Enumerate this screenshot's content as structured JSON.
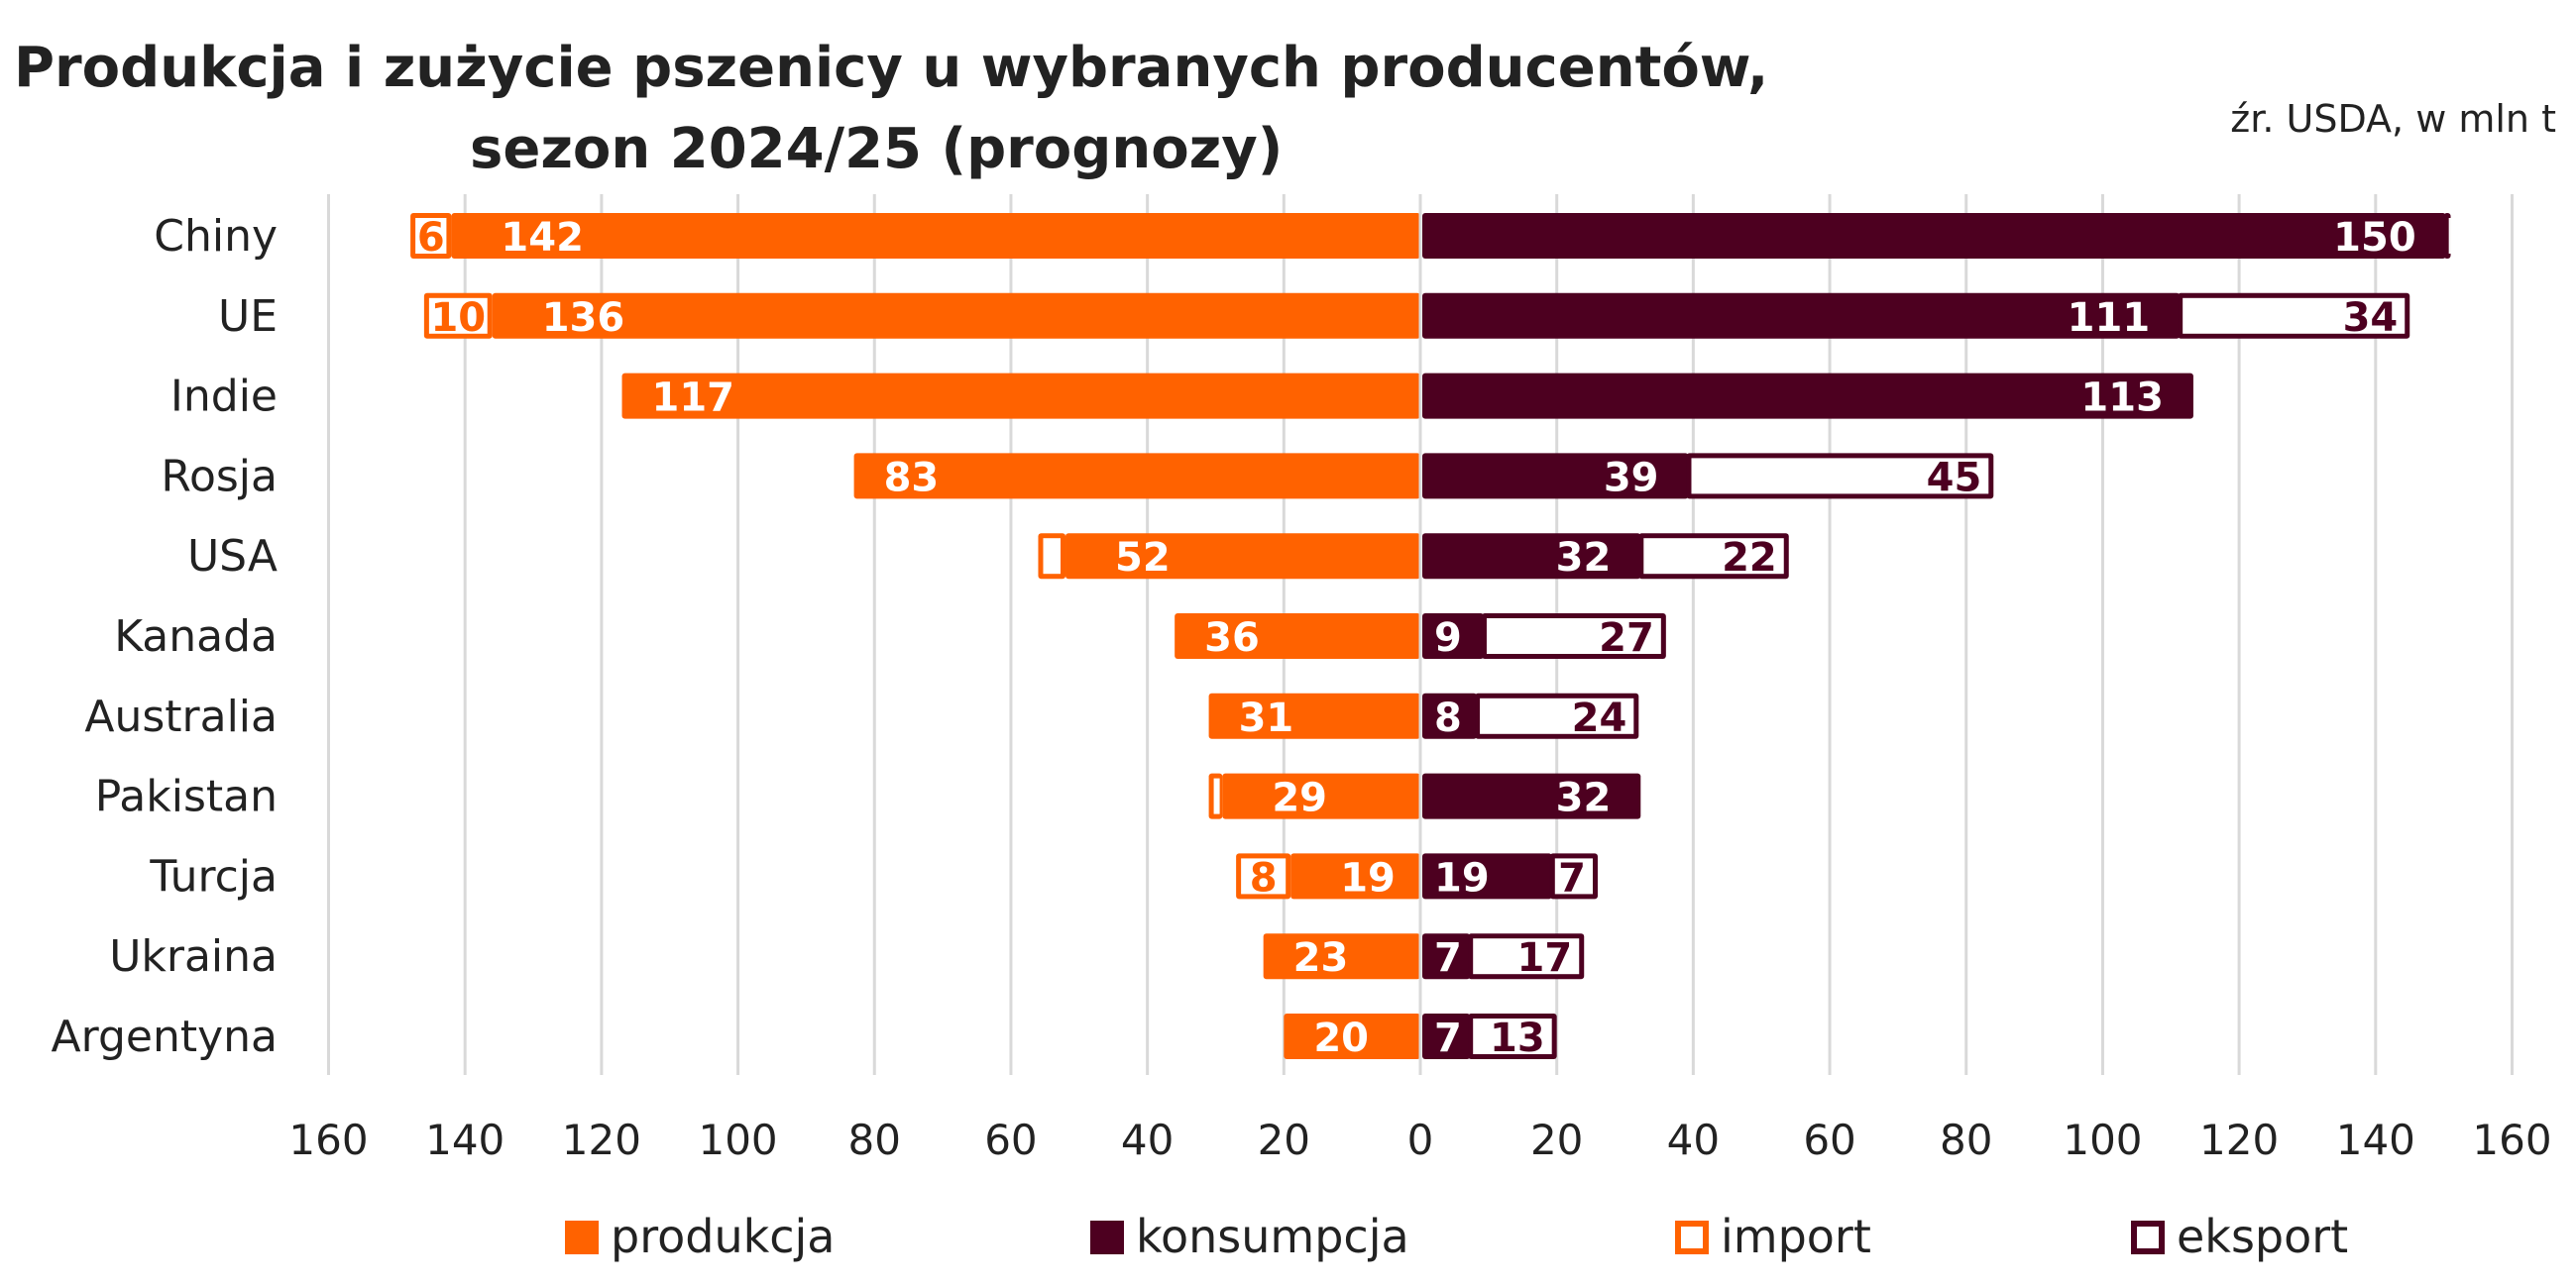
{
  "chart_data": {
    "type": "bar",
    "orientation": "horizontal-diverging-stacked",
    "title_line1": "Produkcja i zużycie pszenicy u wybranych producentów,",
    "title_line2": "sezon 2024/25 (prognozy)",
    "source": "źr. USDA, w mln t",
    "categories": [
      "Chiny",
      "UE",
      "Indie",
      "Rosja",
      "USA",
      "Kanada",
      "Australia",
      "Pakistan",
      "Turcja",
      "Ukraina",
      "Argentyna"
    ],
    "series": [
      {
        "name": "produkcja",
        "side": "left",
        "style": "filled",
        "color": "#FF6200",
        "values": [
          142,
          136,
          117,
          83,
          52,
          36,
          31,
          29,
          19,
          23,
          20
        ],
        "labels": [
          "142",
          "136",
          "117",
          "83",
          "52",
          "36",
          "31",
          "29",
          "19",
          "23",
          "20"
        ]
      },
      {
        "name": "import",
        "side": "left",
        "style": "outline",
        "color": "#FF6200",
        "values": [
          6,
          10,
          0,
          0,
          4,
          0,
          0,
          2,
          8,
          0,
          0
        ],
        "labels": [
          "6",
          "10",
          "",
          "",
          "",
          "",
          "",
          "",
          "8",
          "",
          ""
        ]
      },
      {
        "name": "konsumpcja",
        "side": "right",
        "style": "filled",
        "color": "#4D0020",
        "values": [
          150,
          111,
          113,
          39,
          32,
          9,
          8,
          32,
          19,
          7,
          7
        ],
        "labels": [
          "150",
          "111",
          "113",
          "39",
          "32",
          "9",
          "8",
          "32",
          "19",
          "7",
          "7"
        ]
      },
      {
        "name": "eksport",
        "side": "right",
        "style": "outline",
        "color": "#4D0020",
        "values": [
          1,
          34,
          0,
          45,
          22,
          27,
          24,
          0,
          7,
          17,
          13
        ],
        "labels": [
          "",
          "34",
          "",
          "45",
          "22",
          "27",
          "24",
          "",
          "7",
          "17",
          "13"
        ]
      }
    ],
    "x_ticks": [
      "160",
      "140",
      "120",
      "100",
      "80",
      "60",
      "40",
      "20",
      "0",
      "20",
      "40",
      "60",
      "80",
      "100",
      "120",
      "140",
      "160"
    ],
    "xlim": [
      -160,
      160
    ],
    "grid": true,
    "legend_placement": "bottom"
  }
}
